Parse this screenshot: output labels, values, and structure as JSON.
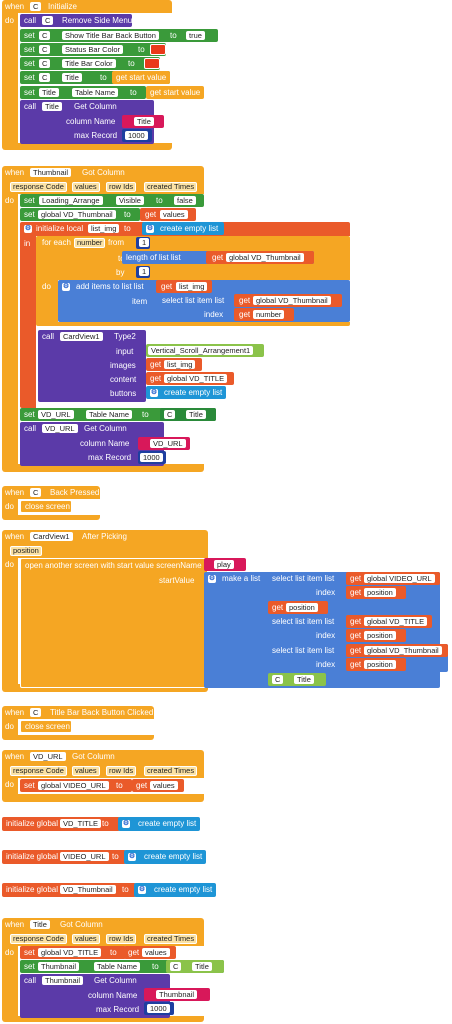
{
  "kw": {
    "when": "when",
    "do": "do",
    "call": "call",
    "set": "set",
    "to": "to",
    "in": "in",
    "get": "get"
  },
  "blk1": {
    "comp": "C",
    "event": "Initialize",
    "remove_menu": "Remove Side Menu",
    "show_title_back": "Show Title Bar Back Button",
    "true_val": "true",
    "status_color": "Status Bar Color",
    "title_color": "Title Bar Color",
    "title": "Title",
    "get_start_value": "get start value",
    "table_name": "Table Name",
    "comp_title": "Title",
    "get_column": "Get Column",
    "column_name": "column Name",
    "col_val": "Title",
    "max_record": "max Record",
    "max_val": "1000"
  },
  "blk2": {
    "comp": "Thumbnail",
    "event": "Got Column",
    "params": [
      "response Code",
      "values",
      "row Ids",
      "created Times"
    ],
    "loading": "Loading_Arrange",
    "visible": "Visible",
    "false_val": "false",
    "gvd_thumb": "global VD_Thumbnail",
    "values": "values",
    "init_local": "initialize local",
    "list_img": "list_img",
    "create_empty": "create empty list",
    "for_each": "for each",
    "number": "number",
    "from": "from",
    "one": "1",
    "length_of": "length of list  list",
    "by": "by",
    "add_items": "add items to list  list",
    "item": "item",
    "select_item": "select list item  list",
    "index": "index",
    "cardview": "CardView1",
    "type2": "Type2",
    "input": "input",
    "vsa": "Vertical_Scroll_Arrangement1",
    "images": "images",
    "content": "content",
    "gvd_title": "global VD_TITLE",
    "buttons": "buttons",
    "vd_url": "VD_URL",
    "table_name": "Table Name",
    "c": "C",
    "title": "Title",
    "get_column": "Get Column",
    "column_name": "column Name",
    "col_val": "VD_URL",
    "max_record": "max Record",
    "max_val": "1000"
  },
  "blk3": {
    "comp": "C",
    "event": "Back Pressed",
    "close": "close screen"
  },
  "blk4": {
    "comp": "CardView1",
    "event": "After Picking",
    "param": "position",
    "open": "open another screen with start value  screenName",
    "play": "play",
    "start_value": "startValue",
    "make_list": "make a list",
    "select_item": "select list item  list",
    "gvideo": "global VIDEO_URL",
    "index": "index",
    "position": "position",
    "gvd_title": "global VD_TITLE",
    "gvd_thumb": "global VD_Thumbnail",
    "c": "C",
    "title": "Title"
  },
  "blk5": {
    "comp": "C",
    "event": "Title Bar Back Button Clicked",
    "close": "close screen"
  },
  "blk6": {
    "comp": "VD_URL",
    "event": "Got Column",
    "params": [
      "response Code",
      "values",
      "row Ids",
      "created Times"
    ],
    "gvideo": "global VIDEO_URL",
    "values": "values"
  },
  "globals": [
    {
      "label": "initialize global",
      "name": "VD_TITLE",
      "to": "to",
      "val": "create empty list"
    },
    {
      "label": "initialize global",
      "name": "VIDEO_URL",
      "to": "to",
      "val": "create empty list"
    },
    {
      "label": "initialize global",
      "name": "VD_Thumbnail",
      "to": "to",
      "val": "create empty list"
    }
  ],
  "blk7": {
    "comp": "Title",
    "event": "Got Column",
    "params": [
      "response Code",
      "values",
      "row Ids",
      "created Times"
    ],
    "gvd_title": "global VD_TITLE",
    "values": "values",
    "thumb": "Thumbnail",
    "table_name": "Table Name",
    "c": "C",
    "title": "Title",
    "get_column": "Get Column",
    "column_name": "column Name",
    "col_val": "Thumbnail",
    "max_record": "max Record",
    "max_val": "1000"
  }
}
